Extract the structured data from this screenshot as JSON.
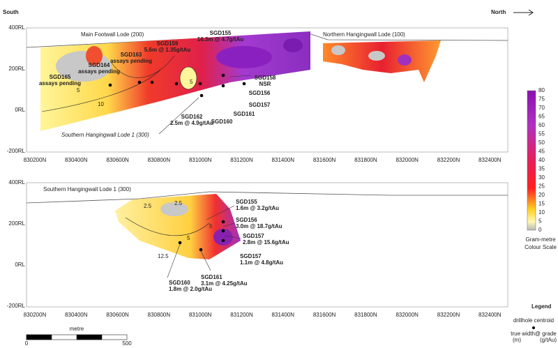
{
  "header": {
    "south": "South",
    "north": "North"
  },
  "panels": [
    {
      "titles": [
        "Main Footwall Lode (200)",
        "Northern Hangingwall Lode (100)"
      ],
      "rl_labels": [
        "400RL",
        "200RL",
        "0RL",
        "-200RL"
      ],
      "northings": [
        "830200N",
        "830400N",
        "830600N",
        "830800N",
        "831000N",
        "831200N",
        "831400N",
        "831600N",
        "831800N",
        "832000N",
        "832200N",
        "832400N"
      ],
      "annotations": [
        {
          "lines": [
            "SGD155",
            "16.3m @ 4.7g/tAu"
          ]
        },
        {
          "lines": [
            "SGD159",
            "5.6m @ 1.35g/tAu"
          ]
        },
        {
          "lines": [
            "SGD163",
            "assays pending"
          ]
        },
        {
          "lines": [
            "SGD164",
            "assays pending"
          ]
        },
        {
          "lines": [
            "SGD165",
            "assays pending"
          ]
        },
        {
          "lines": [
            "SGD158",
            "NSR"
          ]
        },
        {
          "lines": [
            "SGD156"
          ]
        },
        {
          "lines": [
            "SGD157"
          ]
        },
        {
          "lines": [
            "SGD161"
          ]
        },
        {
          "lines": [
            "SGD160"
          ]
        },
        {
          "lines": [
            "SGD162",
            "2.5m @ 4.9g/tAu"
          ]
        },
        {
          "lines": [
            "Southern Hangingwall Lode 1 (300)"
          ]
        }
      ],
      "contour_labels": [
        "5",
        "5",
        "10"
      ]
    },
    {
      "titles": [
        "Southern Hangingwall Lode 1 (300)"
      ],
      "rl_labels": [
        "400RL",
        "200RL",
        "0RL",
        "-200RL"
      ],
      "northings": [
        "830200N",
        "830400N",
        "830600N",
        "830800N",
        "831000N",
        "831200N",
        "831400N",
        "831600N",
        "831800N",
        "832000N",
        "832200N",
        "832400N"
      ],
      "annotations": [
        {
          "lines": [
            "SGD155",
            "1.6m @ 3.2g/tAu"
          ]
        },
        {
          "lines": [
            "SGD156",
            "3.0m @ 18.7g/tAu"
          ]
        },
        {
          "lines": [
            "SGD157",
            "2.8m @ 15.6g/tAu"
          ]
        },
        {
          "lines": [
            "SGD157",
            "1.1m @ 4.8g/tAu"
          ]
        },
        {
          "lines": [
            "SGD161",
            "3.1m @ 4.25g/tAu"
          ]
        },
        {
          "lines": [
            "SGD160",
            "1.8m @ 2.0g/tAu"
          ]
        }
      ],
      "contour_labels": [
        "2.5",
        "2.5",
        "5",
        "5",
        "12.5"
      ]
    }
  ],
  "colour_scale": {
    "ticks": [
      0,
      5,
      10,
      15,
      20,
      25,
      30,
      35,
      40,
      45,
      50,
      55,
      60,
      65,
      70,
      75,
      80
    ],
    "caption": [
      "Gram-metre",
      "Colour Scale"
    ]
  },
  "legend": {
    "title": "Legend",
    "item": "drillhole centroid",
    "lines": [
      "true width@ grade",
      "(m)",
      "(g/tAu)"
    ]
  },
  "scale_bar": {
    "unit": "metre",
    "start": "0",
    "end": "500"
  }
}
